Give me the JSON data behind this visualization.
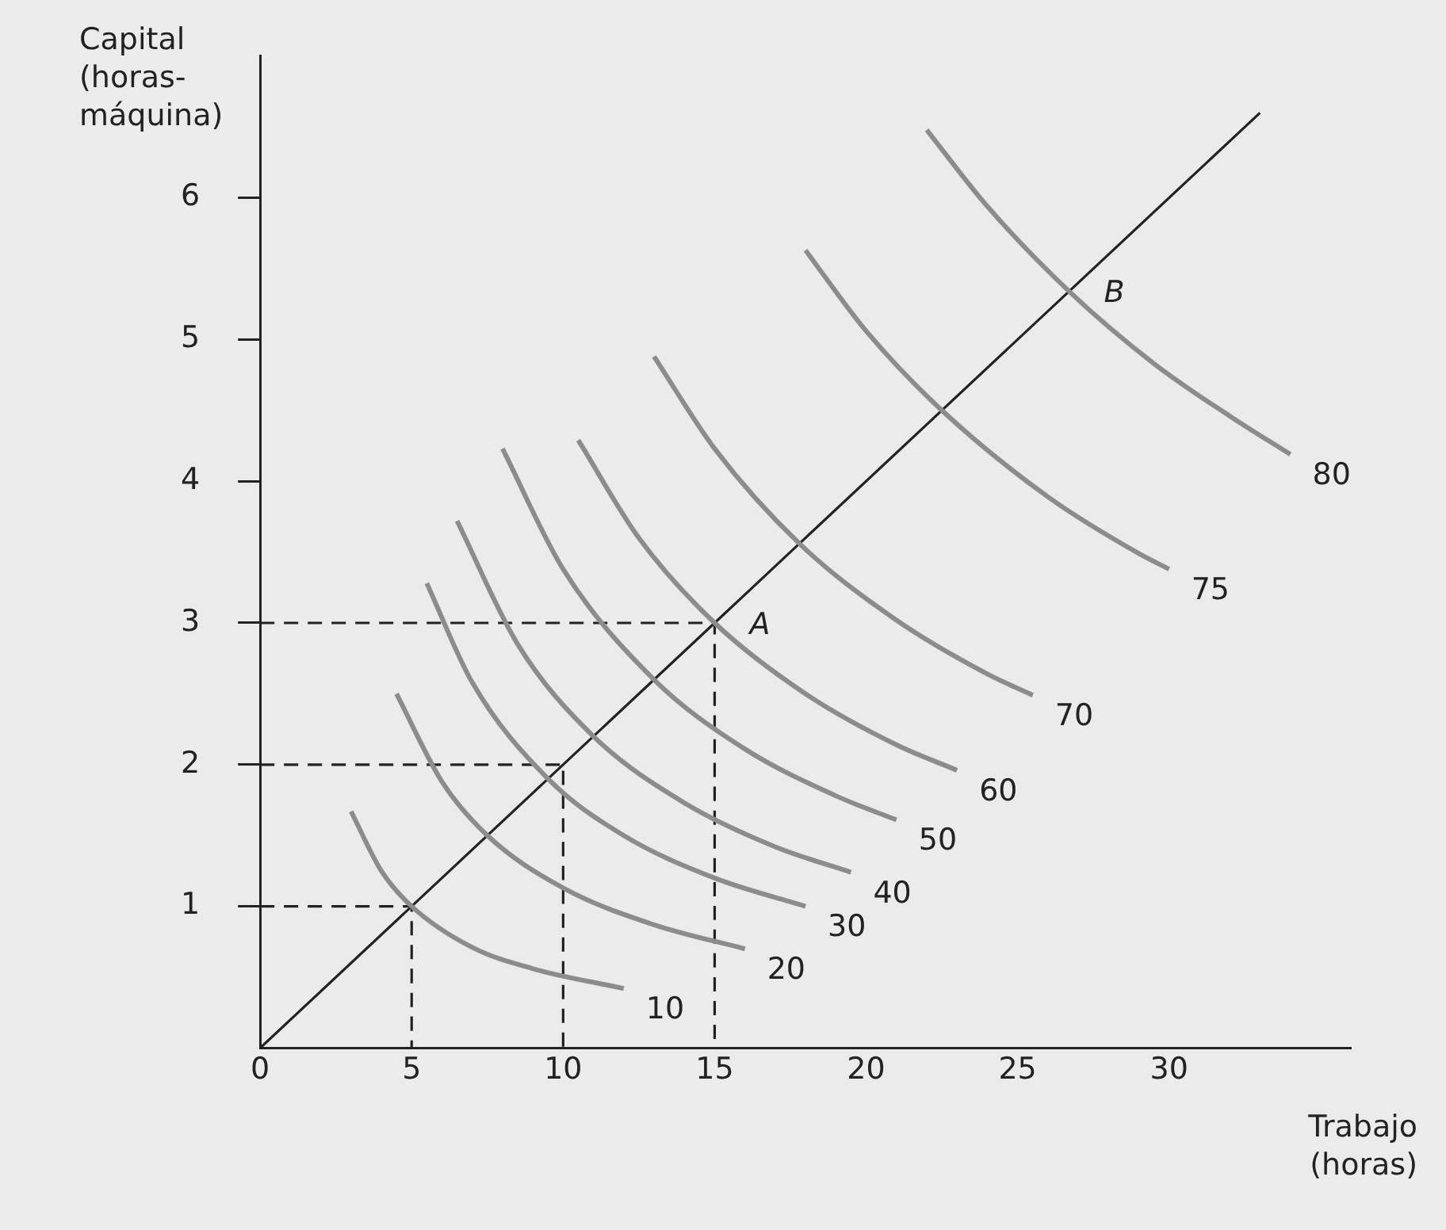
{
  "chart_data": {
    "type": "line",
    "xlabel": "Trabajo\n(horas)",
    "ylabel": "Capital\n(horas-\nmáquina)",
    "xlim": [
      0,
      36
    ],
    "xticks": [
      0,
      5,
      10,
      15,
      20,
      25,
      30
    ],
    "ylim": [
      0,
      7
    ],
    "yticks": [
      1,
      2,
      3,
      4,
      5,
      6
    ],
    "grid": false,
    "legend": false,
    "marker": "none",
    "line_style": "solid",
    "series": [
      {
        "name": "10",
        "color": "#8c8c8c",
        "x": [
          3,
          4,
          5,
          7,
          9,
          12
        ],
        "values": [
          1.67,
          1.25,
          1,
          0.71,
          0.56,
          0.42
        ]
      },
      {
        "name": "20",
        "color": "#8c8c8c",
        "x": [
          4.5,
          6,
          7.5,
          10,
          13,
          16
        ],
        "values": [
          2.5,
          1.88,
          1.5,
          1.13,
          0.87,
          0.7
        ]
      },
      {
        "name": "30",
        "color": "#8c8c8c",
        "x": [
          5.5,
          7,
          9.5,
          12,
          15,
          18
        ],
        "values": [
          3.28,
          2.58,
          1.9,
          1.5,
          1.2,
          1.0
        ]
      },
      {
        "name": "40",
        "color": "#8c8c8c",
        "x": [
          6.5,
          8.5,
          11,
          14,
          17,
          19.5
        ],
        "values": [
          3.72,
          2.85,
          2.2,
          1.73,
          1.42,
          1.24
        ]
      },
      {
        "name": "50",
        "color": "#8c8c8c",
        "x": [
          8,
          10,
          13,
          16,
          19,
          21
        ],
        "values": [
          4.23,
          3.38,
          2.6,
          2.11,
          1.78,
          1.61
        ]
      },
      {
        "name": "60",
        "color": "#8c8c8c",
        "x": [
          10.5,
          12.5,
          15,
          18,
          21,
          23
        ],
        "values": [
          4.29,
          3.6,
          3,
          2.5,
          2.14,
          1.96
        ]
      },
      {
        "name": "70",
        "color": "#8c8c8c",
        "x": [
          13,
          15,
          17.8,
          21,
          24,
          25.5
        ],
        "values": [
          4.88,
          4.23,
          3.56,
          3.02,
          2.64,
          2.49
        ]
      },
      {
        "name": "75",
        "color": "#8c8c8c",
        "x": [
          18,
          20,
          22.5,
          26,
          29,
          30
        ],
        "values": [
          5.63,
          5.06,
          4.5,
          3.89,
          3.49,
          3.38
        ]
      },
      {
        "name": "80",
        "color": "#8c8c8c",
        "x": [
          22,
          24,
          26.7,
          29.5,
          32,
          34
        ],
        "values": [
          6.48,
          5.94,
          5.34,
          4.83,
          4.46,
          4.19
        ]
      },
      {
        "color": "#222222",
        "x": [
          0,
          33
        ],
        "values": [
          0,
          6.6
        ]
      },
      {
        "color": "#222222",
        "line_style": "dashed",
        "x": [
          0,
          5,
          5
        ],
        "values": [
          1,
          1,
          0
        ]
      },
      {
        "color": "#222222",
        "line_style": "dashed",
        "x": [
          0,
          10,
          10
        ],
        "values": [
          2,
          2,
          0
        ]
      },
      {
        "color": "#222222",
        "line_style": "dashed",
        "x": [
          0,
          15,
          15
        ],
        "values": [
          3,
          3,
          0
        ]
      }
    ],
    "annotations": [
      {
        "text": "A",
        "x": 15,
        "y": 3
      },
      {
        "text": "B",
        "x": 26.7,
        "y": 5.34
      }
    ]
  }
}
